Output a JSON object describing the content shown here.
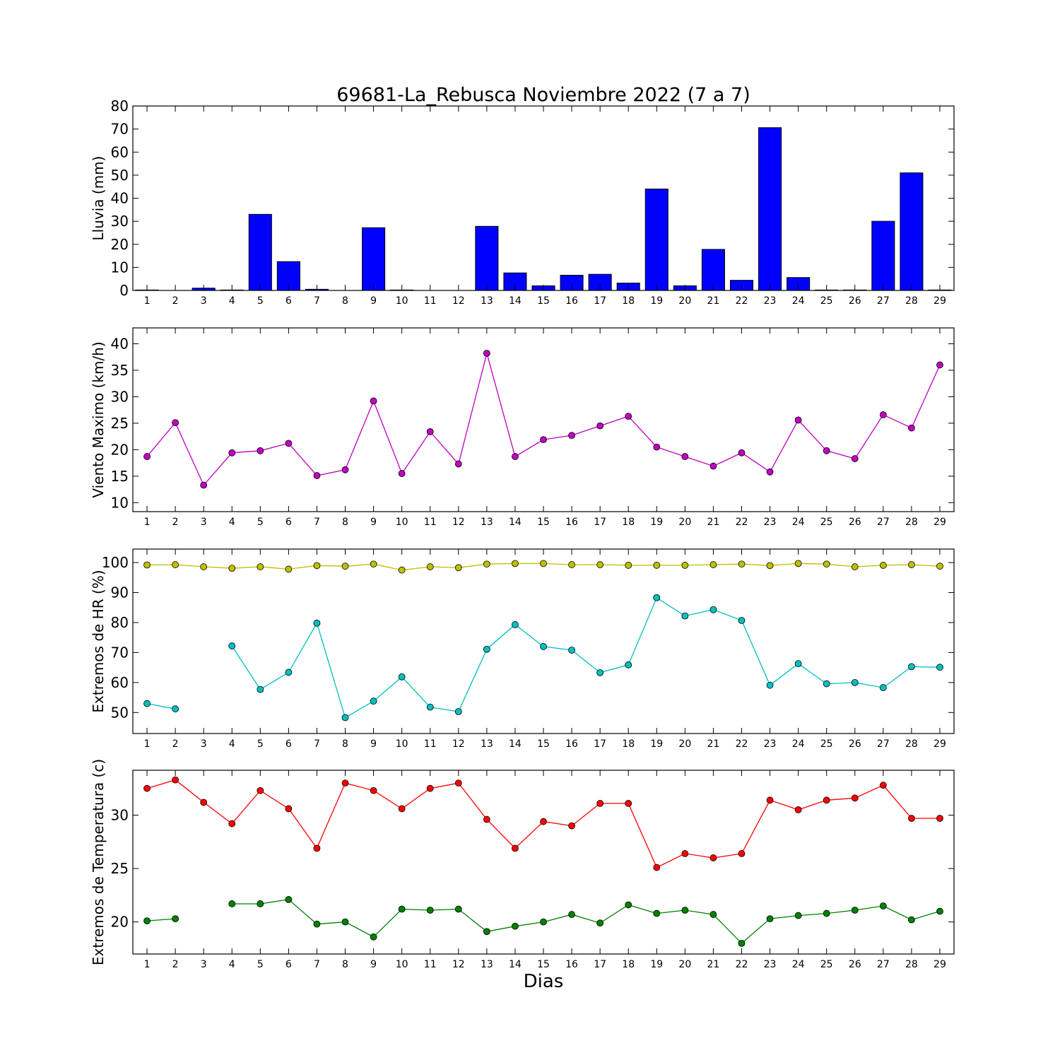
{
  "title": "69681-La_Rebusca Noviembre 2022  (7 a 7)",
  "xlabel": "Dias",
  "chart_data": [
    {
      "type": "bar",
      "ylabel": "Lluvia (mm)",
      "ylim": [
        0,
        80
      ],
      "yticks": [
        0,
        10,
        20,
        30,
        40,
        50,
        60,
        70,
        80
      ],
      "x": [
        1,
        2,
        3,
        4,
        5,
        6,
        7,
        8,
        9,
        10,
        11,
        12,
        13,
        14,
        15,
        16,
        17,
        18,
        19,
        20,
        21,
        22,
        23,
        24,
        25,
        26,
        27,
        28,
        29
      ],
      "values": [
        0.2,
        0,
        1,
        0.2,
        33,
        12.5,
        0.5,
        0,
        27.2,
        0.2,
        0,
        0,
        27.8,
        7.6,
        2,
        6.6,
        7,
        3.2,
        44,
        2,
        17.8,
        4.4,
        70.6,
        5.6,
        0.2,
        0.2,
        30,
        51,
        0.2
      ],
      "color": "#0000ff"
    },
    {
      "type": "line",
      "ylabel": "Viento Maximo (km/h)",
      "ylim": [
        8.3,
        43
      ],
      "yticks": [
        10,
        15,
        20,
        25,
        30,
        35,
        40
      ],
      "x": [
        1,
        2,
        3,
        4,
        5,
        6,
        7,
        8,
        9,
        10,
        11,
        12,
        13,
        14,
        15,
        16,
        17,
        18,
        19,
        20,
        21,
        22,
        23,
        24,
        25,
        26,
        27,
        28,
        29
      ],
      "series": [
        {
          "values": [
            18.7,
            25.1,
            13.3,
            19.4,
            19.8,
            21.2,
            15.1,
            16.2,
            29.2,
            15.5,
            23.4,
            17.3,
            38.2,
            18.7,
            21.9,
            22.7,
            24.5,
            26.3,
            20.5,
            18.7,
            16.9,
            19.4,
            15.8,
            25.6,
            19.8,
            18.3,
            26.6,
            24.1,
            36
          ],
          "color": "#bf00bf"
        }
      ]
    },
    {
      "type": "line",
      "ylabel": "Extremos de HR (%)",
      "ylim": [
        43,
        104.5
      ],
      "yticks": [
        50,
        60,
        70,
        80,
        90,
        100
      ],
      "x": [
        1,
        2,
        3,
        4,
        5,
        6,
        7,
        8,
        9,
        10,
        11,
        12,
        13,
        14,
        15,
        16,
        17,
        18,
        19,
        20,
        21,
        22,
        23,
        24,
        25,
        26,
        27,
        28,
        29
      ],
      "series": [
        {
          "values": [
            99.2,
            99.3,
            98.6,
            98.1,
            98.6,
            97.8,
            99,
            98.8,
            99.5,
            97.5,
            98.6,
            98.3,
            99.5,
            99.7,
            99.7,
            99.3,
            99.3,
            99.1,
            99.1,
            99.1,
            99.3,
            99.5,
            99,
            99.7,
            99.5,
            98.6,
            99.1,
            99.3,
            98.8
          ],
          "color": "#bfbf00"
        },
        {
          "values": [
            53,
            51.2,
            null,
            72.2,
            57.7,
            63.4,
            79.8,
            48.3,
            53.8,
            61.9,
            51.8,
            50.3,
            71.1,
            79.3,
            72,
            70.8,
            63.3,
            65.9,
            88.3,
            82.2,
            84.3,
            80.7,
            59.1,
            66.3,
            59.6,
            60,
            58.3,
            65.3,
            65.1
          ],
          "color": "#00bfbf"
        }
      ]
    },
    {
      "type": "line",
      "ylabel": "Extremos de Temperatura (c)",
      "ylim": [
        17,
        34.2
      ],
      "yticks": [
        20,
        25,
        30
      ],
      "x": [
        1,
        2,
        3,
        4,
        5,
        6,
        7,
        8,
        9,
        10,
        11,
        12,
        13,
        14,
        15,
        16,
        17,
        18,
        19,
        20,
        21,
        22,
        23,
        24,
        25,
        26,
        27,
        28,
        29
      ],
      "series": [
        {
          "values": [
            32.5,
            33.3,
            31.2,
            29.2,
            32.3,
            30.6,
            26.9,
            33,
            32.3,
            30.6,
            32.5,
            33,
            29.6,
            26.9,
            29.4,
            29,
            31.1,
            31.1,
            25.1,
            26.4,
            26,
            26.4,
            31.4,
            30.5,
            31.4,
            31.6,
            32.8,
            29.7,
            29.7
          ],
          "color": "#ff0000"
        },
        {
          "values": [
            20.1,
            20.3,
            null,
            21.7,
            21.7,
            22.1,
            19.8,
            20,
            18.6,
            21.2,
            21.1,
            21.2,
            19.1,
            19.6,
            20,
            20.7,
            19.9,
            21.6,
            20.8,
            21.1,
            20.7,
            18,
            20.3,
            20.6,
            20.8,
            21.1,
            21.5,
            20.2,
            21
          ],
          "color": "#008000"
        }
      ]
    }
  ]
}
